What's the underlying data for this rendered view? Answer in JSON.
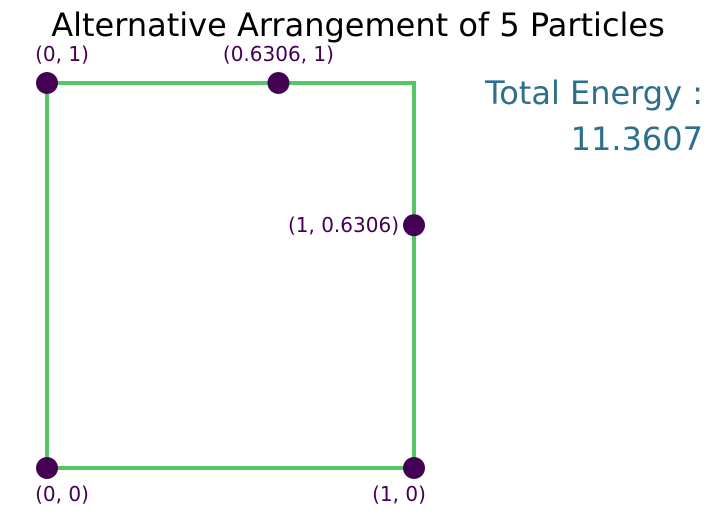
{
  "chart_data": {
    "type": "scatter",
    "title": "Alternative Arrangement of 5 Particles",
    "xlim": [
      0,
      1
    ],
    "ylim": [
      0,
      1
    ],
    "grid": false,
    "axes_visible": false,
    "boundary": {
      "shape": "unit-square",
      "color": "#55c667",
      "corners": [
        [
          0,
          0
        ],
        [
          1,
          0
        ],
        [
          1,
          1
        ],
        [
          0,
          1
        ]
      ]
    },
    "points": [
      {
        "x": 0,
        "y": 1,
        "label": "(0, 1)",
        "label_position": "above"
      },
      {
        "x": 0.6306,
        "y": 1,
        "label": "(0.6306, 1)",
        "label_position": "above"
      },
      {
        "x": 1,
        "y": 0.6306,
        "label": "(1, 0.6306)",
        "label_position": "left"
      },
      {
        "x": 0,
        "y": 0,
        "label": "(0, 0)",
        "label_position": "below"
      },
      {
        "x": 1,
        "y": 0,
        "label": "(1, 0)",
        "label_position": "below"
      }
    ],
    "point_color": "#440154",
    "annotation": {
      "line1": "Total Energy :",
      "line2": "11.3607",
      "color": "#2d708e"
    }
  }
}
